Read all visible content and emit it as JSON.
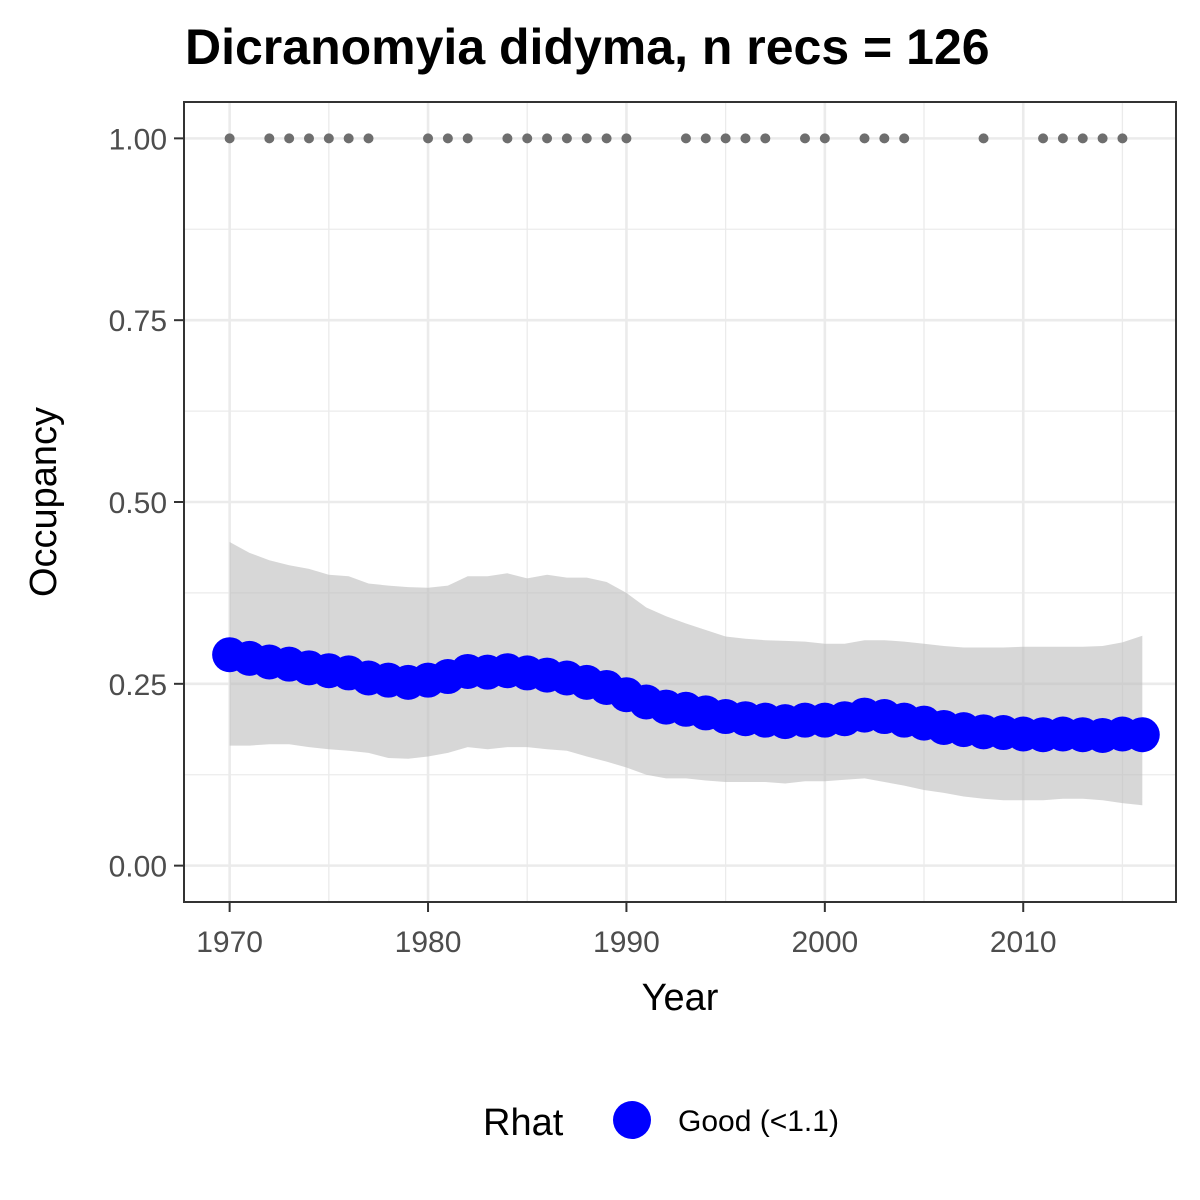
{
  "chart_data": {
    "type": "line",
    "title": "Dicranomyia didyma, n recs = 126",
    "xlabel": "Year",
    "ylabel": "Occupancy",
    "xlim": [
      1967.7,
      2017.7
    ],
    "ylim": [
      -0.05,
      1.05
    ],
    "x_ticks": [
      1970,
      1980,
      1990,
      2000,
      2010
    ],
    "x_tick_labels": [
      "1970",
      "1980",
      "1990",
      "2000",
      "2010"
    ],
    "y_ticks": [
      0,
      0.25,
      0.5,
      0.75,
      1.0
    ],
    "y_tick_labels": [
      "0.00",
      "0.25",
      "0.50",
      "0.75",
      "1.00"
    ],
    "grid": true,
    "colors": {
      "mean": "#0000ff",
      "ribbon": "#bebebe",
      "records": "#6e6e6e",
      "grid": "#ebebeb",
      "panel_border": "#333333"
    },
    "series": [
      {
        "x": [
          1970,
          1971,
          1972,
          1973,
          1974,
          1975,
          1976,
          1977,
          1978,
          1979,
          1980,
          1981,
          1982,
          1983,
          1984,
          1985,
          1986,
          1987,
          1988,
          1989,
          1990,
          1991,
          1992,
          1993,
          1994,
          1995,
          1996,
          1997,
          1998,
          1999,
          2000,
          2001,
          2002,
          2003,
          2004,
          2005,
          2006,
          2007,
          2008,
          2009,
          2010,
          2011,
          2012,
          2013,
          2014,
          2015,
          2016
        ],
        "mean": [
          0.29,
          0.285,
          0.28,
          0.277,
          0.272,
          0.268,
          0.265,
          0.258,
          0.255,
          0.252,
          0.255,
          0.26,
          0.267,
          0.266,
          0.268,
          0.265,
          0.262,
          0.258,
          0.252,
          0.245,
          0.235,
          0.225,
          0.218,
          0.215,
          0.21,
          0.205,
          0.202,
          0.2,
          0.198,
          0.2,
          0.2,
          0.202,
          0.207,
          0.205,
          0.2,
          0.196,
          0.19,
          0.187,
          0.184,
          0.183,
          0.181,
          0.18,
          0.181,
          0.18,
          0.179,
          0.181,
          0.18
        ],
        "lower": [
          0.165,
          0.165,
          0.167,
          0.167,
          0.163,
          0.16,
          0.158,
          0.155,
          0.148,
          0.147,
          0.15,
          0.155,
          0.163,
          0.16,
          0.163,
          0.163,
          0.16,
          0.158,
          0.15,
          0.143,
          0.135,
          0.125,
          0.12,
          0.12,
          0.117,
          0.115,
          0.115,
          0.115,
          0.113,
          0.116,
          0.116,
          0.118,
          0.12,
          0.115,
          0.11,
          0.104,
          0.1,
          0.095,
          0.092,
          0.09,
          0.09,
          0.09,
          0.092,
          0.092,
          0.09,
          0.086,
          0.083
        ],
        "upper": [
          0.445,
          0.43,
          0.42,
          0.413,
          0.408,
          0.4,
          0.398,
          0.388,
          0.385,
          0.383,
          0.382,
          0.385,
          0.398,
          0.398,
          0.402,
          0.395,
          0.4,
          0.396,
          0.396,
          0.39,
          0.375,
          0.355,
          0.343,
          0.333,
          0.324,
          0.315,
          0.312,
          0.31,
          0.309,
          0.308,
          0.305,
          0.305,
          0.31,
          0.31,
          0.308,
          0.305,
          0.302,
          0.3,
          0.3,
          0.3,
          0.301,
          0.301,
          0.301,
          0.301,
          0.302,
          0.307,
          0.316
        ]
      }
    ],
    "records": {
      "y": 1.0,
      "years": [
        1970,
        1972,
        1973,
        1974,
        1975,
        1976,
        1977,
        1980,
        1981,
        1982,
        1984,
        1985,
        1986,
        1987,
        1988,
        1989,
        1990,
        1993,
        1994,
        1995,
        1996,
        1997,
        1999,
        2000,
        2002,
        2003,
        2004,
        2008,
        2011,
        2012,
        2013,
        2014,
        2015
      ]
    },
    "legend": {
      "position": "bottom",
      "title": "Rhat",
      "items": [
        {
          "label": "Good (<1.1)",
          "color": "#0000ff"
        }
      ]
    }
  }
}
